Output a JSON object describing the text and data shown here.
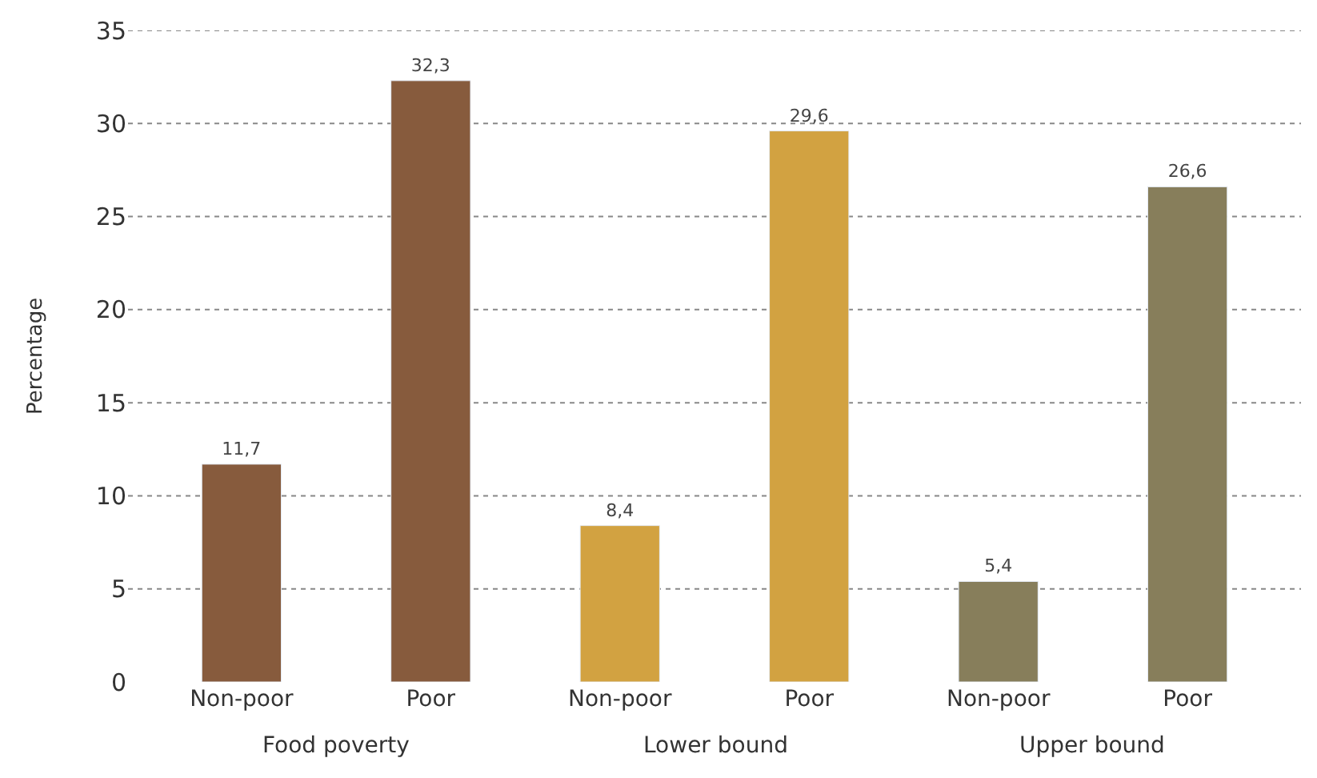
{
  "chart_data": {
    "type": "bar",
    "ylabel": "Percentage",
    "categories": [
      "Non-poor",
      "Poor",
      "Non-poor",
      "Poor",
      "Non-poor",
      "Poor"
    ],
    "values": [
      11.7,
      32.3,
      8.4,
      29.6,
      5.4,
      26.6
    ],
    "value_labels": [
      "11,7",
      "32,3",
      "8,4",
      "29,6",
      "5,4",
      "26,6"
    ],
    "colors": [
      "#875b3d",
      "#875b3d",
      "#d2a241",
      "#d2a241",
      "#877e5b",
      "#877e5b"
    ],
    "annotations": [
      "Food poverty",
      "Lower bound",
      "Upper bound"
    ],
    "ylim": [
      0,
      35
    ],
    "yticks": [
      0,
      5,
      10,
      15,
      20,
      25,
      30,
      35
    ],
    "grid": "y"
  }
}
